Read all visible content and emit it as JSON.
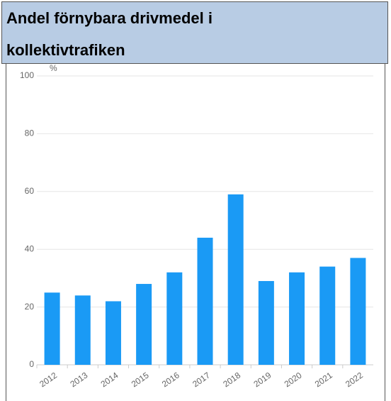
{
  "title": "Andel förnybara drivmedel i kollektivtrafiken",
  "chart_data": {
    "type": "bar",
    "y_unit": "%",
    "categories": [
      "2012",
      "2013",
      "2014",
      "2015",
      "2016",
      "2017",
      "2018",
      "2019",
      "2020",
      "2021",
      "2022"
    ],
    "values": [
      25,
      24,
      22,
      28,
      32,
      44,
      59,
      29,
      32,
      34,
      37
    ],
    "color": "#1a9af5",
    "ylim": [
      0,
      100
    ],
    "yticks": [
      0,
      20,
      40,
      60,
      80,
      100
    ],
    "grid": true
  }
}
